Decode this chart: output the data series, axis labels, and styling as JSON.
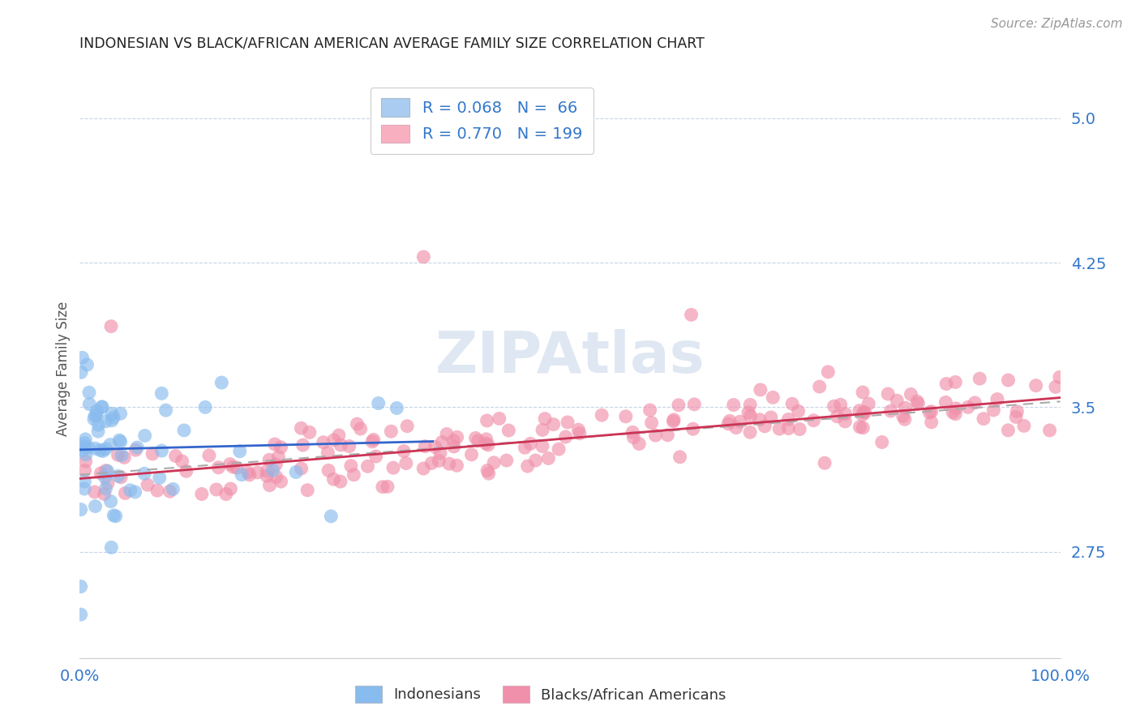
{
  "title": "INDONESIAN VS BLACK/AFRICAN AMERICAN AVERAGE FAMILY SIZE CORRELATION CHART",
  "source": "Source: ZipAtlas.com",
  "ylabel": "Average Family Size",
  "xlim": [
    0,
    1
  ],
  "ylim": [
    2.2,
    5.2
  ],
  "yticks": [
    2.75,
    3.5,
    4.25,
    5.0
  ],
  "watermark_text": "ZIPAtlas",
  "legend_entries": [
    {
      "label": "R = 0.068   N =  66",
      "facecolor": "#aaccf0"
    },
    {
      "label": "R = 0.770   N = 199",
      "facecolor": "#f8b0c0"
    }
  ],
  "indonesian_color": "#88bbee",
  "black_color": "#f090aa",
  "indonesian_line_color": "#3366cc",
  "black_line_color": "#cc3355",
  "overall_line_color": "#aaaaaa",
  "indonesian_intercept": 3.28,
  "indonesian_slope": 0.12,
  "black_intercept": 3.13,
  "black_slope": 0.42,
  "overall_intercept": 3.15,
  "overall_slope": 0.38,
  "background_color": "#ffffff",
  "grid_color": "#c8d4e8",
  "title_color": "#222222",
  "axis_label_color": "#555555",
  "tick_color": "#3377cc",
  "source_color": "#999999",
  "bottom_label_color": "#333333"
}
